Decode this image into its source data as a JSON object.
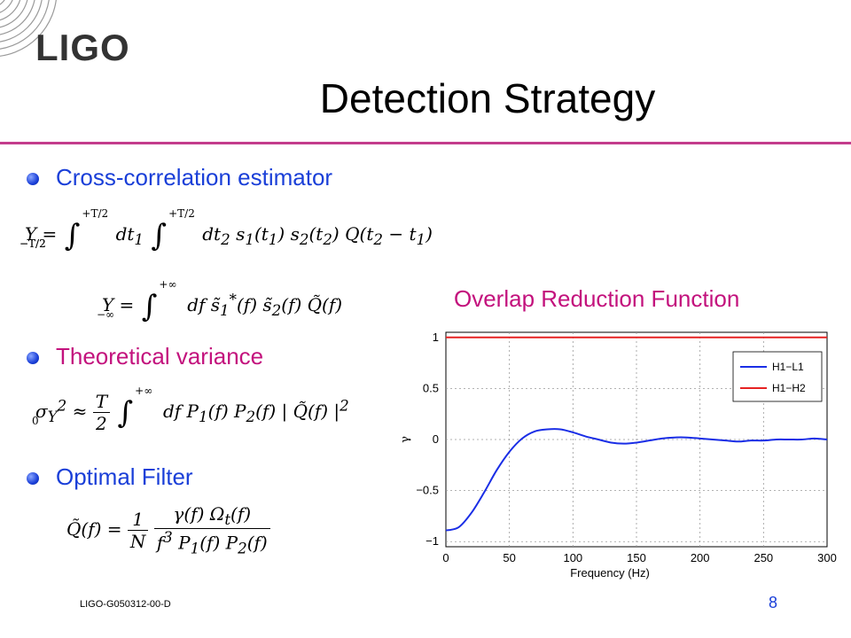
{
  "slide": {
    "logo": "LIGO",
    "title": "Detection Strategy",
    "footer_id": "LIGO-G050312-00-D",
    "page_number": "8"
  },
  "bullets": [
    {
      "label": "Cross-correlation estimator",
      "color": "#1a3fd8"
    },
    {
      "label": "Theoretical variance",
      "color": "#c3127d"
    },
    {
      "label": "Optimal Filter",
      "color": "#1a3fd8"
    }
  ],
  "equations": {
    "y_time": "Y = ∫_{-T/2}^{+T/2} dt1 ∫_{-T/2}^{+T/2} dt2 s1(t1) s2(t2) Q(t2 − t1)",
    "y_freq": "Y = ∫_{-∞}^{+∞} df s̃1*(f) s̃2(f) Q̃(f)",
    "variance": "σ_Y^2 ≈ T/2 ∫_0^{+∞} df P1(f) P2(f) |Q̃(f)|^2",
    "filter": "Q̃(f) = 1/N · γ(f) Ω_t(f) / (f^3 P1(f) P2(f))"
  },
  "chart_title": "Overlap Reduction Function",
  "chart_data": {
    "type": "line",
    "title": "Overlap Reduction Function",
    "xlabel": "Frequency (Hz)",
    "ylabel": "γ",
    "xlim": [
      0,
      300
    ],
    "ylim": [
      -1.05,
      1.05
    ],
    "xticks": [
      0,
      50,
      100,
      150,
      200,
      250,
      300
    ],
    "yticks": [
      -1,
      -0.5,
      0,
      0.5,
      1
    ],
    "ytick_labels": [
      "−1",
      "−0.5",
      "0",
      "0.5",
      "1"
    ],
    "grid": true,
    "legend_position": "top-right",
    "series": [
      {
        "name": "H1−L1",
        "color": "#1a2ee6",
        "x": [
          0,
          10,
          20,
          30,
          40,
          50,
          60,
          70,
          80,
          90,
          100,
          110,
          120,
          130,
          140,
          150,
          160,
          170,
          180,
          190,
          200,
          210,
          220,
          230,
          240,
          250,
          260,
          270,
          280,
          290,
          300
        ],
        "y": [
          -0.89,
          -0.86,
          -0.72,
          -0.52,
          -0.3,
          -0.12,
          0.01,
          0.08,
          0.1,
          0.1,
          0.07,
          0.03,
          0.0,
          -0.03,
          -0.04,
          -0.03,
          -0.01,
          0.01,
          0.02,
          0.02,
          0.01,
          0.0,
          -0.01,
          -0.02,
          -0.01,
          -0.01,
          0.0,
          0.0,
          0.0,
          0.01,
          0.0
        ]
      },
      {
        "name": "H1−H2",
        "color": "#e62222",
        "x": [
          0,
          300
        ],
        "y": [
          1,
          1
        ]
      }
    ]
  }
}
